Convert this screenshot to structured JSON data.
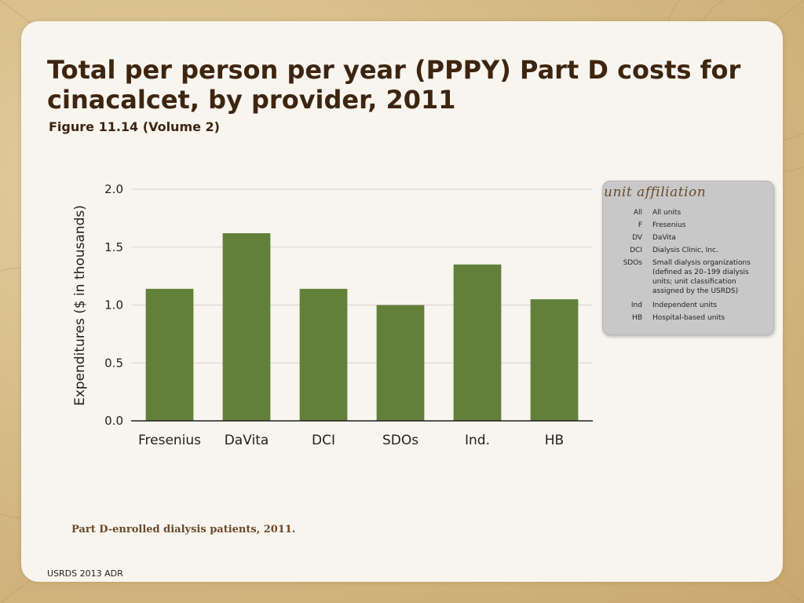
{
  "slide": {
    "title": "Total per person per year (PPPY) Part D costs for cinacalcet, by provider, 2011",
    "subtitle": "Figure 11.14 (Volume 2)",
    "caption": "Part D-enrolled dialysis patients, 2011.",
    "footer": "USRDS 2013 ADR"
  },
  "legend": {
    "title": "unit affiliation",
    "items": [
      {
        "abbr": "All",
        "desc": "All units"
      },
      {
        "abbr": "F",
        "desc": "Fresenius"
      },
      {
        "abbr": "DV",
        "desc": "DaVita"
      },
      {
        "abbr": "DCI",
        "desc": "Dialysis Clinic, Inc."
      },
      {
        "abbr": "SDOs",
        "desc": "Small dialysis organizations (defined as 20–199 dialysis units; unit classification assigned by the USRDS)"
      },
      {
        "abbr": "Ind",
        "desc": "Independent units"
      },
      {
        "abbr": "HB",
        "desc": "Hospital-based units"
      }
    ]
  },
  "colors": {
    "bar": "#62803a",
    "grid": "#d4d4d4",
    "axis": "#231f20"
  },
  "chart_data": {
    "type": "bar",
    "title": "Total per person per year (PPPY) Part D costs for cinacalcet, by provider, 2011",
    "xlabel": "",
    "ylabel": "Expenditures ($ in thousands)",
    "categories": [
      "Fresenius",
      "DaVita",
      "DCI",
      "SDOs",
      "Ind.",
      "HB"
    ],
    "values": [
      1.14,
      1.62,
      1.14,
      1.0,
      1.35,
      1.05
    ],
    "ylim": [
      0,
      2.0
    ],
    "yticks": [
      "0.0",
      "0.5",
      "1.0",
      "1.5",
      "2.0"
    ],
    "ytick_values": [
      0,
      0.5,
      1.0,
      1.5,
      2.0
    ],
    "grid": true
  }
}
